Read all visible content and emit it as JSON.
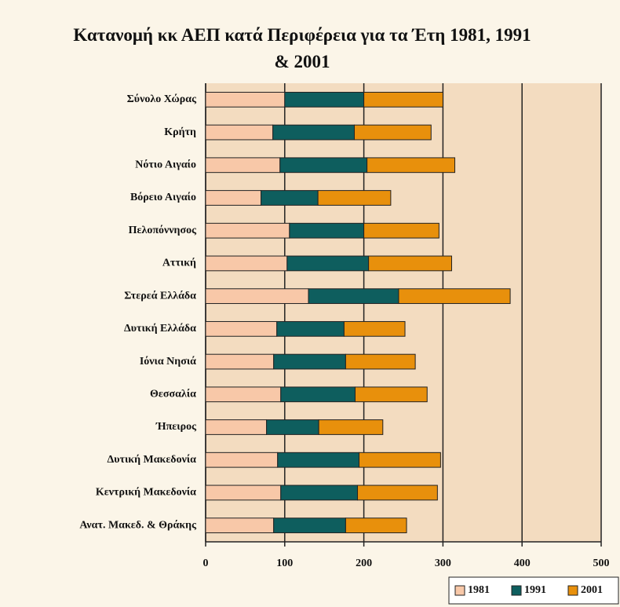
{
  "chart_data": {
    "type": "stacked-barh",
    "title": "Κατανομή κκ ΑΕΠ κατά Περιφέρεια για τα Έτη 1981, 1991 & 2001",
    "categories": [
      "Σύνολο Χώρας",
      "Κρήτη",
      "Νότιο Αιγαίο",
      "Βόρειο Αιγαίο",
      "Πελοπόννησος",
      "Αττική",
      "Στερεά Ελλάδα",
      "Δυτική Ελλάδα",
      "Ιόνια Νησιά",
      "Θεσσαλία",
      "Ήπειρος",
      "Δυτική Μακεδονία",
      "Κεντρική Μακεδονία",
      "Ανατ. Μακεδ. & Θράκης"
    ],
    "series": [
      {
        "name": "1981",
        "color": "#f8c8a8",
        "values": [
          100,
          85,
          94,
          70,
          106,
          103,
          130,
          90,
          86,
          95,
          77,
          91,
          95,
          86
        ]
      },
      {
        "name": "1991",
        "color": "#0e5e5e",
        "values": [
          100,
          103,
          110,
          72,
          94,
          103,
          114,
          85,
          91,
          94,
          66,
          103,
          97,
          91
        ]
      },
      {
        "name": "2001",
        "color": "#e8900c",
        "values": [
          100,
          97,
          111,
          92,
          95,
          105,
          141,
          77,
          88,
          91,
          81,
          103,
          101,
          77
        ]
      }
    ],
    "xlim": [
      0,
      500
    ],
    "xticks": [
      0,
      100,
      200,
      300,
      400,
      500
    ],
    "grid": true,
    "legend": "bottom-right"
  }
}
